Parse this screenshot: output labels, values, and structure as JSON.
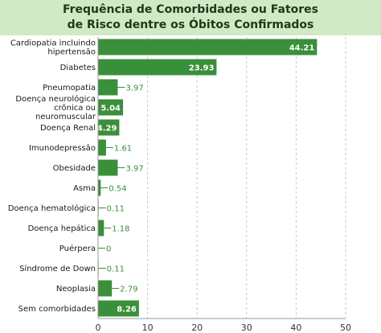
{
  "chart_data": {
    "type": "bar",
    "orientation": "horizontal",
    "title_lines": [
      "Frequência de Comorbidades ou Fatores",
      "de Risco dentre os Óbitos Confirmados"
    ],
    "categories": [
      [
        "Cardiopatia incluindo",
        "hipertensão"
      ],
      [
        "Diabetes"
      ],
      [
        "Pneumopatia"
      ],
      [
        "Doença neurológica",
        "crônica ou",
        "neuromuscular"
      ],
      [
        "Doença Renal"
      ],
      [
        "Imunodepressão"
      ],
      [
        "Obesidade"
      ],
      [
        "Asma"
      ],
      [
        "Doença hematológica"
      ],
      [
        "Doença hepática"
      ],
      [
        "Puérpera"
      ],
      [
        "Síndrome de Down"
      ],
      [
        "Neoplasia"
      ],
      [
        "Sem comorbidades"
      ]
    ],
    "values": [
      44.21,
      23.93,
      3.97,
      5.04,
      4.29,
      1.61,
      3.97,
      0.54,
      0.11,
      1.18,
      0,
      0.11,
      2.79,
      8.26
    ],
    "value_labels": [
      "44.21",
      "23.93",
      "3.97",
      "5.04",
      "4.29",
      "1.61",
      "3.97",
      "0.54",
      "0.11",
      "1.18",
      "0",
      "0.11",
      "2.79",
      "8.26"
    ],
    "label_inside": [
      true,
      true,
      false,
      true,
      true,
      false,
      false,
      false,
      false,
      false,
      false,
      false,
      false,
      true
    ],
    "x_ticks": [
      "0",
      "10",
      "20",
      "30",
      "40",
      "50"
    ],
    "xlim": [
      0,
      50
    ],
    "grid": "vertical-dashed",
    "bar_color": "#3a8f3a"
  }
}
